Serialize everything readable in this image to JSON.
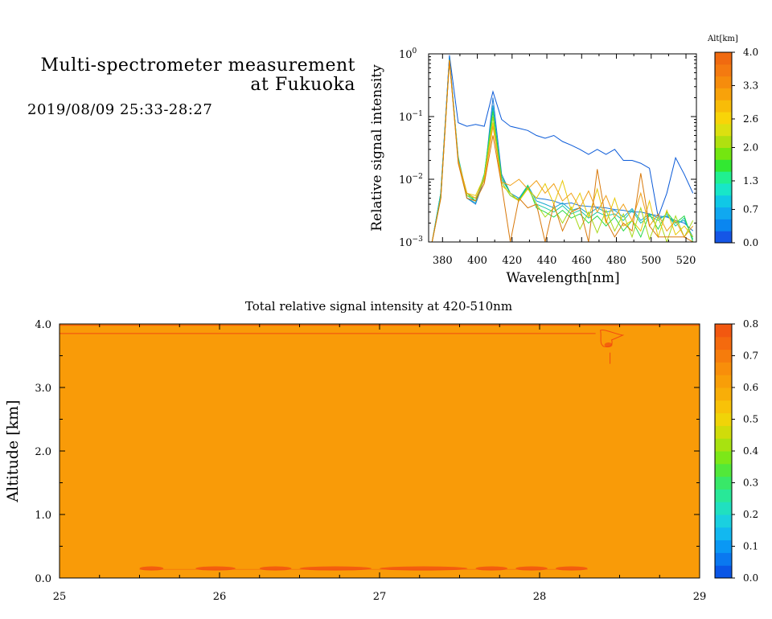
{
  "header": {
    "title_line1": "Multi-spectrometer measurement",
    "title_line2": "at Fukuoka",
    "datetime": "2019/08/09 25:33-28:27"
  },
  "chart_data": [
    {
      "type": "line",
      "xlabel": "Wavelength[nm]",
      "ylabel": "Relative signal intensity",
      "xlim": [
        372,
        526
      ],
      "xticks": [
        "380",
        "400",
        "420",
        "440",
        "460",
        "480",
        "500",
        "520"
      ],
      "ylim": [
        0.001,
        1
      ],
      "yscale": "log",
      "yticks": [
        {
          "base": "10",
          "exp": "0"
        },
        {
          "base": "10",
          "exp": "−1"
        },
        {
          "base": "10",
          "exp": "−2"
        },
        {
          "base": "10",
          "exp": "−3"
        }
      ],
      "colorbar": {
        "label": "Alt[km]",
        "ticks": [
          "4.0",
          "3.3",
          "2.6",
          "2.0",
          "1.3",
          "0.7",
          "0.0"
        ],
        "min": 0.0,
        "max": 4.0
      },
      "x": [
        374,
        379,
        384,
        389,
        394,
        399,
        404,
        409,
        414,
        419,
        424,
        429,
        434,
        439,
        444,
        449,
        454,
        459,
        464,
        469,
        474,
        479,
        484,
        489,
        494,
        499,
        504,
        509,
        514,
        519,
        524
      ],
      "series": [
        {
          "altitude": 0.0,
          "color": "#0a5ad8",
          "values": [
            0.001,
            0.005,
            0.95,
            0.08,
            0.07,
            0.075,
            0.07,
            0.25,
            0.09,
            0.07,
            0.065,
            0.06,
            0.05,
            0.045,
            0.05,
            0.04,
            0.035,
            0.03,
            0.025,
            0.03,
            0.025,
            0.03,
            0.02,
            0.02,
            0.018,
            0.015,
            0.0025,
            0.006,
            0.022,
            0.012,
            0.006
          ]
        },
        {
          "altitude": 0.5,
          "color": "#1e78d8",
          "values": [
            0.001,
            0.006,
            0.92,
            0.02,
            0.005,
            0.004,
            0.01,
            0.2,
            0.012,
            0.006,
            0.005,
            0.007,
            0.005,
            0.0048,
            0.0045,
            0.004,
            0.0042,
            0.0038,
            0.0037,
            0.0036,
            0.0035,
            0.0033,
            0.0032,
            0.003,
            0.003,
            0.0028,
            0.0026,
            0.0025,
            0.0022,
            0.002,
            0.0015
          ]
        },
        {
          "altitude": 1.0,
          "color": "#12a8d0",
          "values": [
            0.001,
            0.006,
            0.85,
            0.022,
            0.005,
            0.0042,
            0.011,
            0.15,
            0.01,
            0.006,
            0.005,
            0.008,
            0.0045,
            0.004,
            0.0035,
            0.0042,
            0.0032,
            0.0035,
            0.0028,
            0.0035,
            0.003,
            0.0032,
            0.0025,
            0.0034,
            0.0022,
            0.0028,
            0.0024,
            0.0026,
            0.002,
            0.0022,
            0.0012
          ]
        },
        {
          "altitude": 1.5,
          "color": "#18c8a8",
          "values": [
            0.001,
            0.006,
            0.8,
            0.023,
            0.0055,
            0.0045,
            0.012,
            0.13,
            0.009,
            0.0055,
            0.0048,
            0.0075,
            0.004,
            0.0035,
            0.003,
            0.0038,
            0.0028,
            0.0032,
            0.0024,
            0.003,
            0.0026,
            0.0028,
            0.0022,
            0.0032,
            0.002,
            0.0026,
            0.0022,
            0.0028,
            0.0018,
            0.0024,
            0.0011
          ]
        },
        {
          "altitude": 2.0,
          "color": "#2ad848",
          "values": [
            0.001,
            0.005,
            0.8,
            0.02,
            0.006,
            0.0045,
            0.012,
            0.12,
            0.011,
            0.006,
            0.0045,
            0.008,
            0.0035,
            0.003,
            0.0025,
            0.0032,
            0.0024,
            0.0028,
            0.002,
            0.0026,
            0.0018,
            0.0025,
            0.0015,
            0.0022,
            0.0012,
            0.0028,
            0.0016,
            0.003,
            0.002,
            0.0026,
            0.001
          ]
        },
        {
          "altitude": 2.5,
          "color": "#a8d818",
          "values": [
            0.001,
            0.005,
            0.8,
            0.02,
            0.0055,
            0.005,
            0.01,
            0.1,
            0.009,
            0.0055,
            0.0045,
            0.0072,
            0.004,
            0.0025,
            0.0035,
            0.002,
            0.0036,
            0.0016,
            0.003,
            0.0014,
            0.0032,
            0.0015,
            0.0028,
            0.0012,
            0.0035,
            0.0011,
            0.0025,
            0.001,
            0.0026,
            0.0012,
            0.0022
          ]
        },
        {
          "altitude": 3.0,
          "color": "#e8c808",
          "values": [
            0.001,
            0.005,
            0.8,
            0.02,
            0.006,
            0.0055,
            0.011,
            0.08,
            0.008,
            0.006,
            0.0045,
            0.007,
            0.005,
            0.0085,
            0.004,
            0.0095,
            0.0032,
            0.006,
            0.0025,
            0.007,
            0.002,
            0.005,
            0.0018,
            0.0022,
            0.0015,
            0.0045,
            0.0012,
            0.0032,
            0.0013,
            0.0018,
            0.0012
          ]
        },
        {
          "altitude": 3.5,
          "color": "#f0a018",
          "values": [
            0.001,
            0.005,
            0.8,
            0.02,
            0.006,
            0.005,
            0.0095,
            0.07,
            0.009,
            0.008,
            0.01,
            0.007,
            0.0095,
            0.006,
            0.0085,
            0.0045,
            0.006,
            0.0035,
            0.0065,
            0.003,
            0.0055,
            0.0025,
            0.004,
            0.0022,
            0.006,
            0.0018,
            0.0028,
            0.0015,
            0.0022,
            0.0012,
            0.0018
          ]
        },
        {
          "altitude": 4.0,
          "color": "#d8780a",
          "values": [
            0.001,
            0.005,
            0.8,
            0.018,
            0.005,
            0.0045,
            0.0085,
            0.05,
            0.008,
            0.001,
            0.005,
            0.0035,
            0.004,
            0.001,
            0.004,
            0.0015,
            0.003,
            0.0035,
            0.001,
            0.0145,
            0.0022,
            0.0012,
            0.002,
            0.0015,
            0.0125,
            0.0018,
            0.0012,
            0.0012,
            0.0012,
            0.0012,
            0.001
          ]
        }
      ]
    },
    {
      "type": "heatmap",
      "title": "Total relative signal intensity at 420-510nm",
      "xlabel": "",
      "ylabel": "Altitude [km]",
      "xlim": [
        25,
        29
      ],
      "xticks": [
        "25",
        "26",
        "27",
        "28",
        "29"
      ],
      "ylim": [
        0.0,
        4.0
      ],
      "yticks": [
        "0.0",
        "1.0",
        "2.0",
        "3.0",
        "4.0"
      ],
      "field_value": 0.6,
      "colorbar": {
        "ticks": [
          "0.8",
          "0.7",
          "0.6",
          "0.5",
          "0.4",
          "0.3",
          "0.2",
          "0.1",
          "0.0"
        ],
        "min": 0.0,
        "max": 0.8
      },
      "features": [
        {
          "kind": "contour_line",
          "altitude": 3.98,
          "x_from": 25.0,
          "x_to": 29.0,
          "value": 0.7
        },
        {
          "kind": "contour_line",
          "altitude": 3.85,
          "x_from": 25.0,
          "x_to": 28.35,
          "value": 0.7
        },
        {
          "kind": "contour_blob",
          "x_center": 28.42,
          "altitude_from": 3.6,
          "altitude_to": 3.95,
          "value": 0.7
        },
        {
          "kind": "near_ground_patches",
          "x_from": 25.5,
          "x_to": 28.3,
          "altitude": 0.15,
          "value": 0.7
        }
      ]
    }
  ]
}
